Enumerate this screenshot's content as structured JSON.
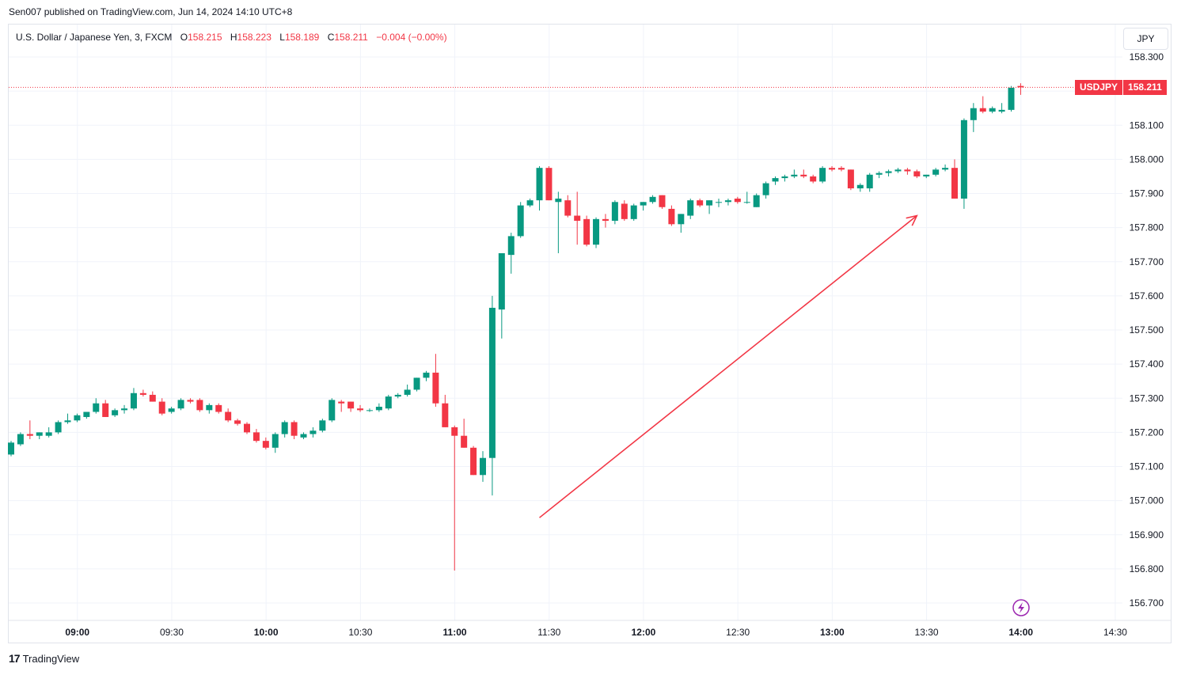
{
  "publisher_line": "Sen007 published on TradingView.com, Jun 14, 2024 14:10 UTC+8",
  "legend": {
    "symbol": "U.S. Dollar / Japanese Yen, 3, FXCM",
    "o_label": "O",
    "o_value": "158.215",
    "h_label": "H",
    "h_value": "158.223",
    "l_label": "L",
    "l_value": "158.189",
    "c_label": "C",
    "c_value": "158.211",
    "change": "−0.004 (−0.00%)"
  },
  "currency_button": "JPY",
  "price_badge": {
    "symbol": "USDJPY",
    "value": "158.211"
  },
  "footer_brand": "TradingView",
  "colors": {
    "up": "#089981",
    "down": "#f23645",
    "arrow": "#f23645",
    "grid": "#f0f3fa",
    "lightning": "#9c27b0"
  },
  "chart_data": {
    "type": "candlestick",
    "interval_minutes": 3,
    "y_ticks": [
      158.3,
      158.1,
      158.0,
      157.9,
      157.8,
      157.7,
      157.6,
      157.5,
      157.4,
      157.3,
      157.2,
      157.1,
      157.0,
      156.9,
      156.8,
      156.7
    ],
    "y_tick_labels": [
      "158.300",
      "158.100",
      "158.000",
      "157.900",
      "157.800",
      "157.700",
      "157.600",
      "157.500",
      "157.400",
      "157.300",
      "157.200",
      "157.100",
      "157.000",
      "156.900",
      "156.800",
      "156.700"
    ],
    "ylim": [
      156.675,
      158.335
    ],
    "x_ticks": [
      {
        "label": "09:00",
        "major": true
      },
      {
        "label": "09:30",
        "major": false
      },
      {
        "label": "10:00",
        "major": true
      },
      {
        "label": "10:30",
        "major": false
      },
      {
        "label": "11:00",
        "major": true
      },
      {
        "label": "11:30",
        "major": false
      },
      {
        "label": "12:00",
        "major": true
      },
      {
        "label": "12:30",
        "major": false
      },
      {
        "label": "13:00",
        "major": true
      },
      {
        "label": "13:30",
        "major": false
      },
      {
        "label": "14:00",
        "major": true
      },
      {
        "label": "14:30",
        "major": false
      }
    ],
    "time_start": "08:51",
    "last_price": 158.211,
    "candles": [
      [
        157.135,
        157.175,
        157.13,
        157.17
      ],
      [
        157.165,
        157.2,
        157.16,
        157.195
      ],
      [
        157.195,
        157.235,
        157.18,
        157.19
      ],
      [
        157.19,
        157.2,
        157.18,
        157.2
      ],
      [
        157.19,
        157.215,
        157.185,
        157.2
      ],
      [
        157.2,
        157.235,
        157.195,
        157.23
      ],
      [
        157.23,
        157.255,
        157.225,
        157.235
      ],
      [
        157.235,
        157.255,
        157.23,
        157.25
      ],
      [
        157.245,
        157.26,
        157.24,
        157.26
      ],
      [
        157.26,
        157.3,
        157.255,
        157.285
      ],
      [
        157.285,
        157.295,
        157.245,
        157.245
      ],
      [
        157.25,
        157.27,
        157.245,
        157.265
      ],
      [
        157.265,
        157.28,
        157.255,
        157.27
      ],
      [
        157.27,
        157.33,
        157.265,
        157.315
      ],
      [
        157.315,
        157.325,
        157.305,
        157.31
      ],
      [
        157.31,
        157.32,
        157.29,
        157.29
      ],
      [
        157.29,
        157.3,
        157.25,
        157.255
      ],
      [
        157.26,
        157.275,
        157.255,
        157.27
      ],
      [
        157.27,
        157.3,
        157.265,
        157.295
      ],
      [
        157.295,
        157.3,
        157.285,
        157.29
      ],
      [
        157.295,
        157.3,
        157.26,
        157.265
      ],
      [
        157.265,
        157.285,
        157.255,
        157.28
      ],
      [
        157.28,
        157.285,
        157.255,
        157.26
      ],
      [
        157.26,
        157.27,
        157.23,
        157.235
      ],
      [
        157.235,
        157.24,
        157.22,
        157.225
      ],
      [
        157.225,
        157.23,
        157.195,
        157.2
      ],
      [
        157.2,
        157.21,
        157.17,
        157.175
      ],
      [
        157.175,
        157.185,
        157.15,
        157.155
      ],
      [
        157.155,
        157.2,
        157.14,
        157.195
      ],
      [
        157.195,
        157.235,
        157.185,
        157.23
      ],
      [
        157.23,
        157.235,
        157.18,
        157.19
      ],
      [
        157.185,
        157.2,
        157.18,
        157.195
      ],
      [
        157.195,
        157.215,
        157.185,
        157.205
      ],
      [
        157.205,
        157.24,
        157.2,
        157.235
      ],
      [
        157.235,
        157.3,
        157.23,
        157.295
      ],
      [
        157.29,
        157.295,
        157.26,
        157.285
      ],
      [
        157.29,
        157.29,
        157.26,
        157.27
      ],
      [
        157.27,
        157.28,
        157.26,
        157.265
      ],
      [
        157.265,
        157.27,
        157.26,
        157.265
      ],
      [
        157.265,
        157.285,
        157.26,
        157.275
      ],
      [
        157.27,
        157.31,
        157.265,
        157.305
      ],
      [
        157.305,
        157.315,
        157.3,
        157.31
      ],
      [
        157.31,
        157.34,
        157.305,
        157.325
      ],
      [
        157.325,
        157.36,
        157.32,
        157.36
      ],
      [
        157.36,
        157.38,
        157.35,
        157.375
      ],
      [
        157.375,
        157.43,
        157.275,
        157.285
      ],
      [
        157.285,
        157.31,
        157.215,
        157.215
      ],
      [
        157.215,
        157.22,
        156.795,
        157.19
      ],
      [
        157.19,
        157.24,
        157.155,
        157.155
      ],
      [
        157.155,
        157.16,
        157.075,
        157.075
      ],
      [
        157.075,
        157.145,
        157.055,
        157.125
      ],
      [
        157.125,
        157.6,
        157.015,
        157.565
      ],
      [
        157.56,
        157.72,
        157.475,
        157.725
      ],
      [
        157.72,
        157.785,
        157.665,
        157.775
      ],
      [
        157.775,
        157.875,
        157.77,
        157.865
      ],
      [
        157.865,
        157.885,
        157.86,
        157.88
      ],
      [
        157.88,
        157.98,
        157.85,
        157.975
      ],
      [
        157.975,
        157.98,
        157.88,
        157.88
      ],
      [
        157.875,
        157.905,
        157.725,
        157.885
      ],
      [
        157.88,
        157.895,
        157.83,
        157.835
      ],
      [
        157.835,
        157.905,
        157.75,
        157.82
      ],
      [
        157.825,
        157.835,
        157.745,
        157.75
      ],
      [
        157.75,
        157.83,
        157.74,
        157.825
      ],
      [
        157.825,
        157.84,
        157.8,
        157.82
      ],
      [
        157.82,
        157.88,
        157.81,
        157.875
      ],
      [
        157.87,
        157.88,
        157.82,
        157.825
      ],
      [
        157.825,
        157.87,
        157.82,
        157.865
      ],
      [
        157.865,
        157.875,
        157.85,
        157.875
      ],
      [
        157.875,
        157.895,
        157.87,
        157.89
      ],
      [
        157.895,
        157.895,
        157.855,
        157.86
      ],
      [
        157.855,
        157.865,
        157.805,
        157.81
      ],
      [
        157.81,
        157.84,
        157.785,
        157.84
      ],
      [
        157.835,
        157.885,
        157.825,
        157.88
      ],
      [
        157.88,
        157.885,
        157.86,
        157.865
      ],
      [
        157.865,
        157.88,
        157.84,
        157.88
      ],
      [
        157.875,
        157.885,
        157.86,
        157.875
      ],
      [
        157.875,
        157.885,
        157.865,
        157.88
      ],
      [
        157.885,
        157.89,
        157.87,
        157.875
      ],
      [
        157.875,
        157.905,
        157.87,
        157.875
      ],
      [
        157.86,
        157.9,
        157.86,
        157.895
      ],
      [
        157.895,
        157.935,
        157.885,
        157.93
      ],
      [
        157.935,
        157.95,
        157.925,
        157.945
      ],
      [
        157.945,
        157.955,
        157.935,
        157.95
      ],
      [
        157.95,
        157.97,
        157.945,
        157.955
      ],
      [
        157.955,
        157.97,
        157.945,
        157.95
      ],
      [
        157.95,
        157.955,
        157.93,
        157.935
      ],
      [
        157.935,
        157.98,
        157.93,
        157.975
      ],
      [
        157.975,
        157.98,
        157.965,
        157.97
      ],
      [
        157.975,
        157.98,
        157.965,
        157.97
      ],
      [
        157.97,
        157.97,
        157.91,
        157.915
      ],
      [
        157.915,
        157.93,
        157.905,
        157.925
      ],
      [
        157.915,
        157.96,
        157.905,
        157.955
      ],
      [
        157.955,
        157.965,
        157.945,
        157.96
      ],
      [
        157.96,
        157.97,
        157.95,
        157.965
      ],
      [
        157.965,
        157.975,
        157.96,
        157.97
      ],
      [
        157.97,
        157.975,
        157.955,
        157.965
      ],
      [
        157.965,
        157.97,
        157.945,
        157.95
      ],
      [
        157.95,
        157.955,
        157.945,
        157.955
      ],
      [
        157.955,
        157.975,
        157.95,
        157.97
      ],
      [
        157.97,
        157.985,
        157.965,
        157.975
      ],
      [
        157.975,
        158.0,
        157.885,
        157.885
      ],
      [
        157.885,
        158.12,
        157.855,
        158.115
      ],
      [
        158.115,
        158.165,
        158.08,
        158.15
      ],
      [
        158.15,
        158.185,
        158.135,
        158.14
      ],
      [
        158.14,
        158.155,
        158.135,
        158.15
      ],
      [
        158.14,
        158.165,
        158.135,
        158.145
      ],
      [
        158.145,
        158.215,
        158.14,
        158.21
      ],
      [
        158.215,
        158.223,
        158.189,
        158.211
      ]
    ],
    "annotation": {
      "type": "arrow",
      "from": {
        "bar": 56,
        "price": 156.95
      },
      "to": {
        "bar": 96,
        "price": 157.835
      }
    }
  }
}
